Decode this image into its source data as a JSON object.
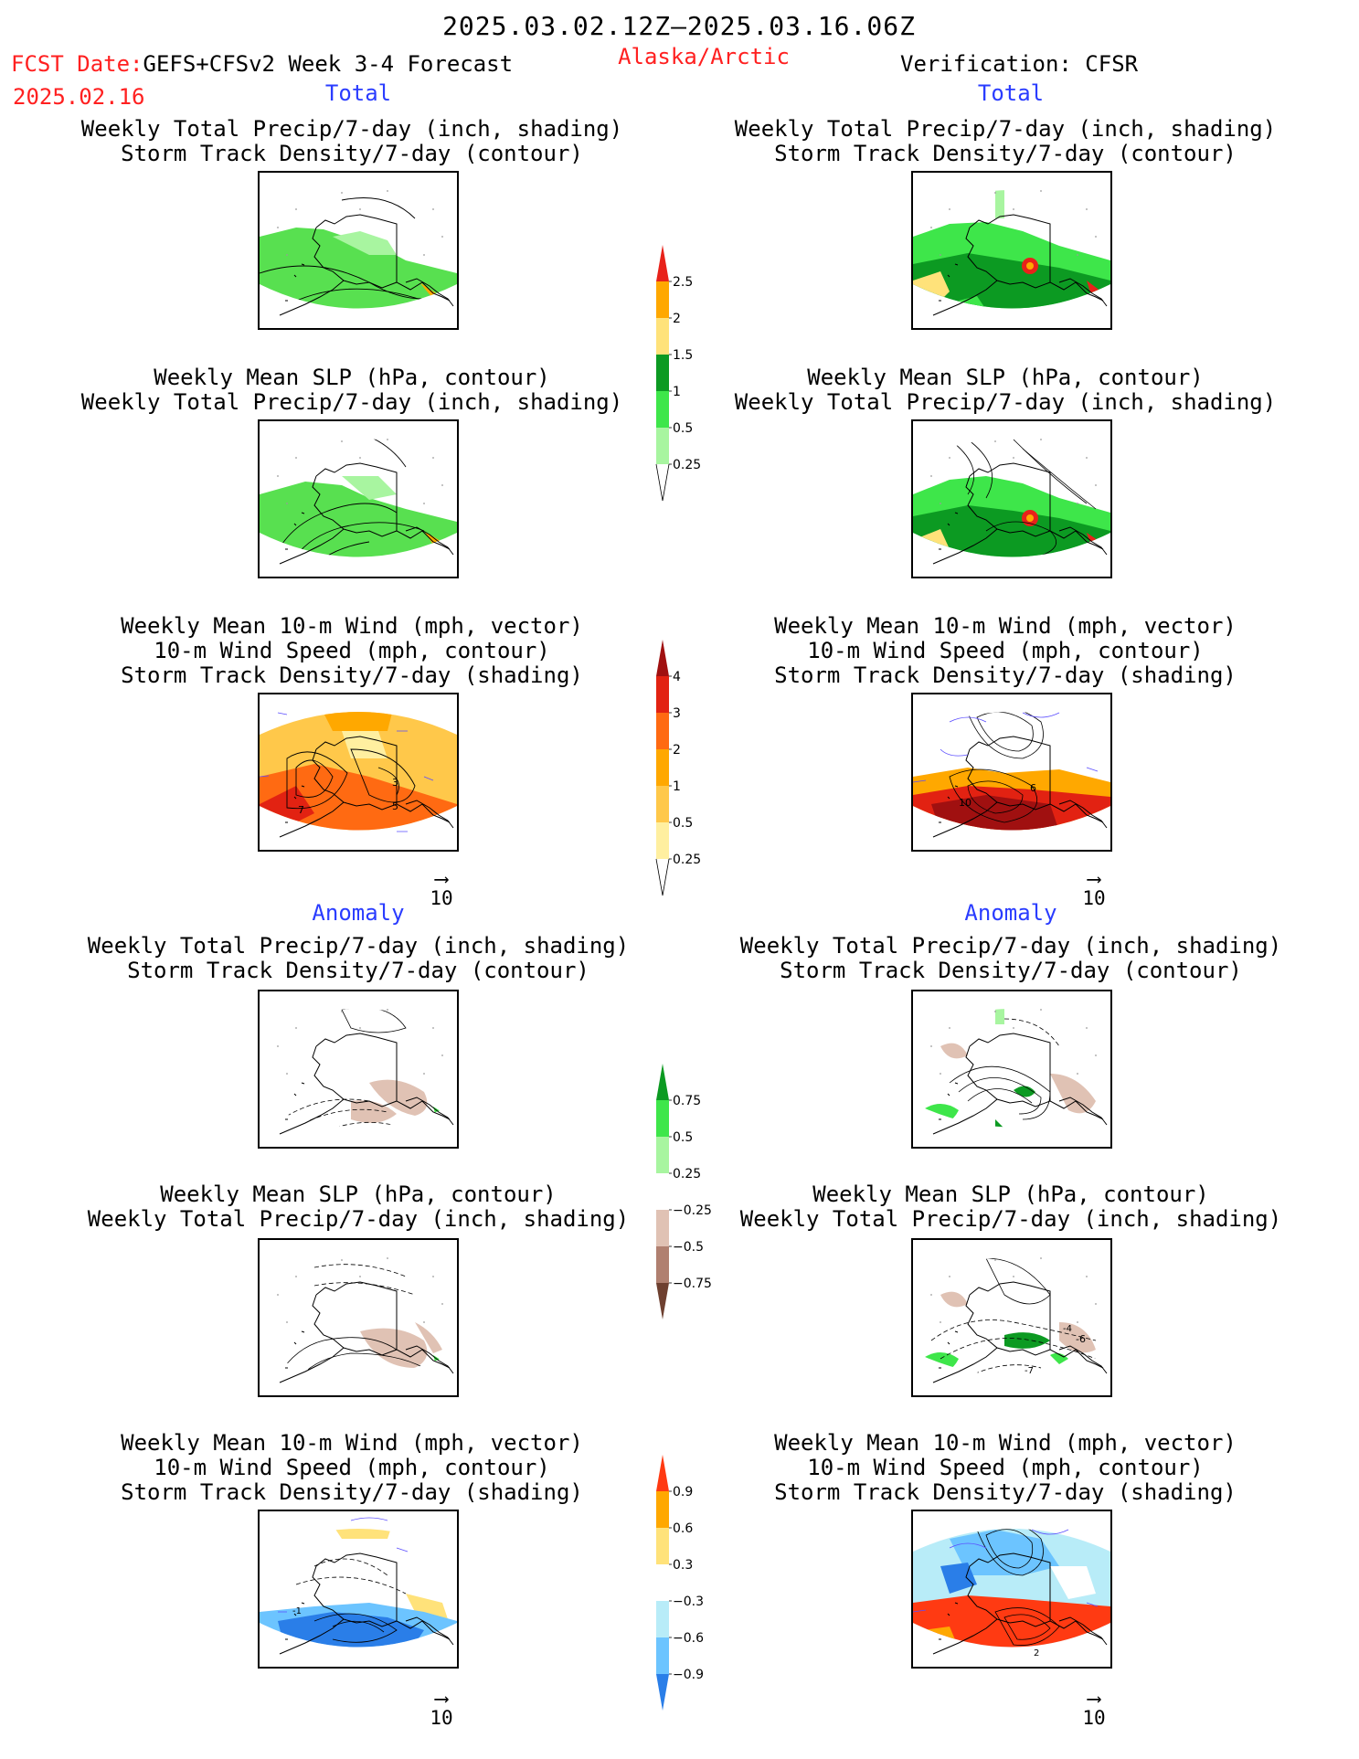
{
  "header": {
    "date_range": "2025.03.02.12Z–2025.03.16.06Z",
    "fcst_date_label": "FCST Date:",
    "model_label": "GEFS+CFSv2 Week 3-4 Forecast",
    "fcst_date_value": "2025.02.16",
    "region": "Alaska/Arctic",
    "verification": "Verification: CFSR"
  },
  "sections": {
    "total": "Total",
    "anomaly": "Anomaly"
  },
  "titles": {
    "precip_storm": [
      "Weekly Total Precip/7-day (inch, shading)",
      "Storm Track Density/7-day (contour)"
    ],
    "slp_precip": [
      "Weekly Mean SLP (hPa, contour)",
      "Weekly Total Precip/7-day (inch, shading)"
    ],
    "wind_storm": [
      "Weekly Mean 10-m Wind (mph, vector)",
      "10-m Wind Speed (mph, contour)",
      "Storm Track Density/7-day (shading)"
    ]
  },
  "vector_ref": "10",
  "contour_labels": {
    "fc_total_wind": [
      "7",
      "3",
      "5"
    ],
    "ob_total_wind": [
      "10",
      "6"
    ],
    "fc_anom_wind": [
      "-1"
    ],
    "ob_anom_wind": [
      "2"
    ],
    "ob_anom_slp": [
      "-6",
      "-4",
      "-7"
    ]
  },
  "colorbars": {
    "precip_total": {
      "labels": [
        "2.5",
        "2",
        "1.5",
        "1",
        "0.5",
        "0.25"
      ],
      "colors": [
        "#e8221a",
        "#ffa800",
        "#ffe27a",
        "#0c9a22",
        "#3ee64a",
        "#a8f5a0"
      ]
    },
    "storm_total": {
      "labels": [
        "4",
        "3",
        "2",
        "1",
        "0.5",
        "0.25"
      ],
      "colors": [
        "#a01010",
        "#e22212",
        "#ff6a12",
        "#ffa800",
        "#ffc84a",
        "#ffefa0"
      ]
    },
    "precip_anom": {
      "labels_top": [
        "0.75",
        "0.5",
        "0.25"
      ],
      "labels_bottom": [
        "−0.25",
        "−0.5",
        "−0.75"
      ],
      "colors_top": [
        "#0c9a22",
        "#3ee64a",
        "#a8f5a0"
      ],
      "colors_bottom": [
        "#e0c2b4",
        "#b08070",
        "#6e4030"
      ]
    },
    "storm_anom": {
      "labels_top": [
        "0.9",
        "0.6",
        "0.3"
      ],
      "labels_bottom": [
        "−0.3",
        "−0.6",
        "−0.9"
      ],
      "colors_top": [
        "#ff3a12",
        "#ffa800",
        "#ffe27a"
      ],
      "colors_bottom": [
        "#b8ecf8",
        "#6cc4ff",
        "#2a7ee8"
      ]
    }
  },
  "colors": {
    "header_red": "#ff2020",
    "section_blue": "#2a3cff"
  }
}
